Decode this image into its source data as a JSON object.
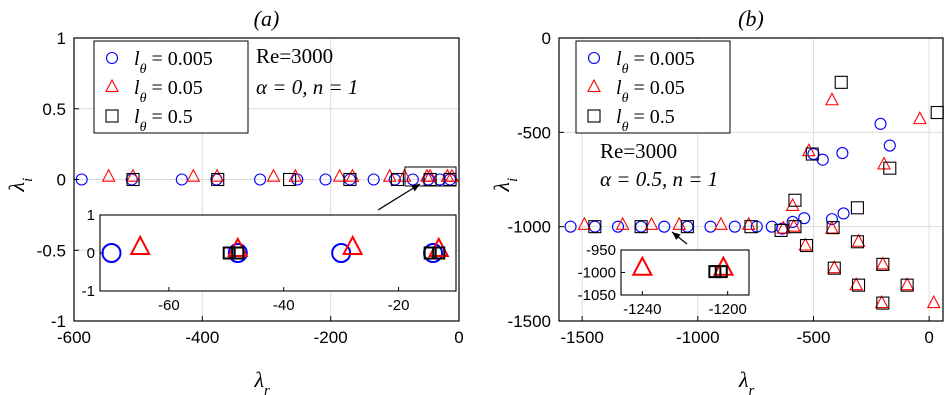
{
  "chart_data": [
    {
      "type": "scatter",
      "title": "(a)",
      "xlabel": "λr",
      "ylabel": "λi",
      "xlim": [
        -600,
        0
      ],
      "ylim": [
        -1,
        1
      ],
      "xticks": [
        "-600",
        "-400",
        "-200",
        "0"
      ],
      "yticks": [
        "1",
        "0.5",
        "0",
        "-0.5",
        "-1"
      ],
      "grid": true,
      "legend_position": "top-left",
      "annotations": [
        "Re=3000",
        "α = 0, n = 1"
      ],
      "series": [
        {
          "name": "lθ = 0.005",
          "marker": "circle",
          "color": "#0000ff",
          "points": [
            [
              -588,
              0
            ],
            [
              -510,
              0
            ],
            [
              -432,
              0
            ],
            [
              -378,
              0
            ],
            [
              -310,
              0
            ],
            [
              -252,
              0
            ],
            [
              -208,
              0
            ],
            [
              -170,
              0
            ],
            [
              -133,
              0
            ],
            [
              -100,
              0
            ],
            [
              -72,
              0
            ],
            [
              -48,
              0
            ],
            [
              -30,
              0
            ],
            [
              -14,
              0
            ]
          ]
        },
        {
          "name": "lθ = 0.05",
          "marker": "triangle",
          "color": "#ff0000",
          "points": [
            [
              -546,
              0.02
            ],
            [
              -508,
              0.02
            ],
            [
              -414,
              0.02
            ],
            [
              -377,
              0.02
            ],
            [
              -289,
              0.02
            ],
            [
              -255,
              0.02
            ],
            [
              -186,
              0.02
            ],
            [
              -166,
              0.02
            ],
            [
              -108,
              0.02
            ],
            [
              -85,
              0.02
            ],
            [
              -50,
              0.02
            ],
            [
              -45,
              0.02
            ],
            [
              -18,
              0.02
            ],
            [
              -11,
              0.02
            ]
          ]
        },
        {
          "name": "lθ = 0.5",
          "marker": "square",
          "color": "#000000",
          "points": [
            [
              -508,
              0
            ],
            [
              -376,
              0
            ],
            [
              -264,
              0
            ],
            [
              -170,
              0
            ],
            [
              -96,
              0
            ],
            [
              -45,
              0
            ],
            [
              -14,
              0
            ]
          ]
        }
      ],
      "inset": {
        "xlim": [
          -72,
          -10
        ],
        "ylim": [
          -1,
          1
        ],
        "xticks": [
          "-60",
          "-40",
          "-20"
        ],
        "yticks": [
          "1",
          "0",
          "-1"
        ],
        "series": [
          {
            "name": "lθ = 0.005",
            "points": [
              [
                -70,
                0
              ],
              [
                -48,
                0
              ],
              [
                -30,
                0
              ],
              [
                -14,
                0
              ]
            ]
          },
          {
            "name": "lθ = 0.05",
            "points": [
              [
                -65,
                0.15
              ],
              [
                -48,
                0.1
              ],
              [
                -28,
                0.15
              ],
              [
                -13,
                0.1
              ]
            ]
          },
          {
            "name": "lθ = 0.5",
            "points": [
              [
                -49.5,
                0
              ],
              [
                -48,
                0
              ],
              [
                -14.5,
                0
              ],
              [
                -13,
                0
              ]
            ]
          }
        ]
      }
    },
    {
      "type": "scatter",
      "title": "(b)",
      "xlabel": "λr",
      "ylabel": "λi",
      "xlim": [
        -1600,
        60
      ],
      "ylim": [
        -1500,
        0
      ],
      "xticks": [
        "-1500",
        "-1000",
        "-500",
        "0"
      ],
      "yticks": [
        "0",
        "-500",
        "-1000",
        "-1500"
      ],
      "grid": true,
      "legend_position": "top-left",
      "annotations": [
        "Re=3000",
        "α = 0.5, n = 1"
      ],
      "series": [
        {
          "name": "lθ = 0.005",
          "marker": "circle",
          "color": "#0000ff",
          "points": [
            [
              -1550,
              -1000
            ],
            [
              -1445,
              -1000
            ],
            [
              -1345,
              -1000
            ],
            [
              -1245,
              -1000
            ],
            [
              -1145,
              -1000
            ],
            [
              -1045,
              -1000
            ],
            [
              -945,
              -1000
            ],
            [
              -840,
              -1000
            ],
            [
              -745,
              -1000
            ],
            [
              -680,
              -1000
            ],
            [
              -635,
              -1010
            ],
            [
              -590,
              -975
            ],
            [
              -540,
              -955
            ],
            [
              -500,
              -615
            ],
            [
              -460,
              -645
            ],
            [
              -420,
              -960
            ],
            [
              -375,
              -610
            ],
            [
              -370,
              -930
            ],
            [
              -210,
              -455
            ],
            [
              -170,
              -570
            ]
          ]
        },
        {
          "name": "lθ = 0.05",
          "marker": "triangle",
          "color": "#ff0000",
          "points": [
            [
              -1490,
              -990
            ],
            [
              -1325,
              -990
            ],
            [
              -1200,
              -990
            ],
            [
              -1080,
              -990
            ],
            [
              -900,
              -990
            ],
            [
              -780,
              -990
            ],
            [
              -630,
              -1010
            ],
            [
              -590,
              -890
            ],
            [
              -585,
              -1000
            ],
            [
              -535,
              -1100
            ],
            [
              -520,
              -600
            ],
            [
              -420,
              -330
            ],
            [
              -420,
              -1010
            ],
            [
              -410,
              -1220
            ],
            [
              -315,
              -1310
            ],
            [
              -305,
              -1080
            ],
            [
              -205,
              -1405
            ],
            [
              -200,
              -1200
            ],
            [
              -195,
              -670
            ],
            [
              -95,
              -1310
            ],
            [
              -40,
              -430
            ],
            [
              20,
              -1405
            ]
          ]
        },
        {
          "name": "lθ = 0.5",
          "marker": "square",
          "color": "#000000",
          "points": [
            [
              -1445,
              -1000
            ],
            [
              -1245,
              -1000
            ],
            [
              -1045,
              -1000
            ],
            [
              -770,
              -1000
            ],
            [
              -640,
              -1020
            ],
            [
              -580,
              -860
            ],
            [
              -580,
              -1000
            ],
            [
              -530,
              -1100
            ],
            [
              -505,
              -615
            ],
            [
              -415,
              -1005
            ],
            [
              -410,
              -1220
            ],
            [
              -380,
              -235
            ],
            [
              -310,
              -900
            ],
            [
              -310,
              -1080
            ],
            [
              -305,
              -1310
            ],
            [
              -200,
              -1200
            ],
            [
              -200,
              -1405
            ],
            [
              -170,
              -690
            ],
            [
              -95,
              -1310
            ],
            [
              35,
              -395
            ]
          ]
        }
      ],
      "inset": {
        "xlim": [
          -1250,
          -1190
        ],
        "ylim": [
          -1050,
          -950
        ],
        "xticks": [
          "-1240",
          "-1200"
        ],
        "yticks": [
          "-950",
          "-1000",
          "-1050"
        ],
        "series": [
          {
            "name": "lθ = 0.05",
            "points": [
              [
                -1240,
                -990
              ],
              [
                -1202,
                -990
              ]
            ]
          },
          {
            "name": "lθ = 0.5",
            "points": [
              [
                -1206,
                -998
              ],
              [
                -1203,
                -998
              ]
            ]
          }
        ]
      }
    }
  ]
}
